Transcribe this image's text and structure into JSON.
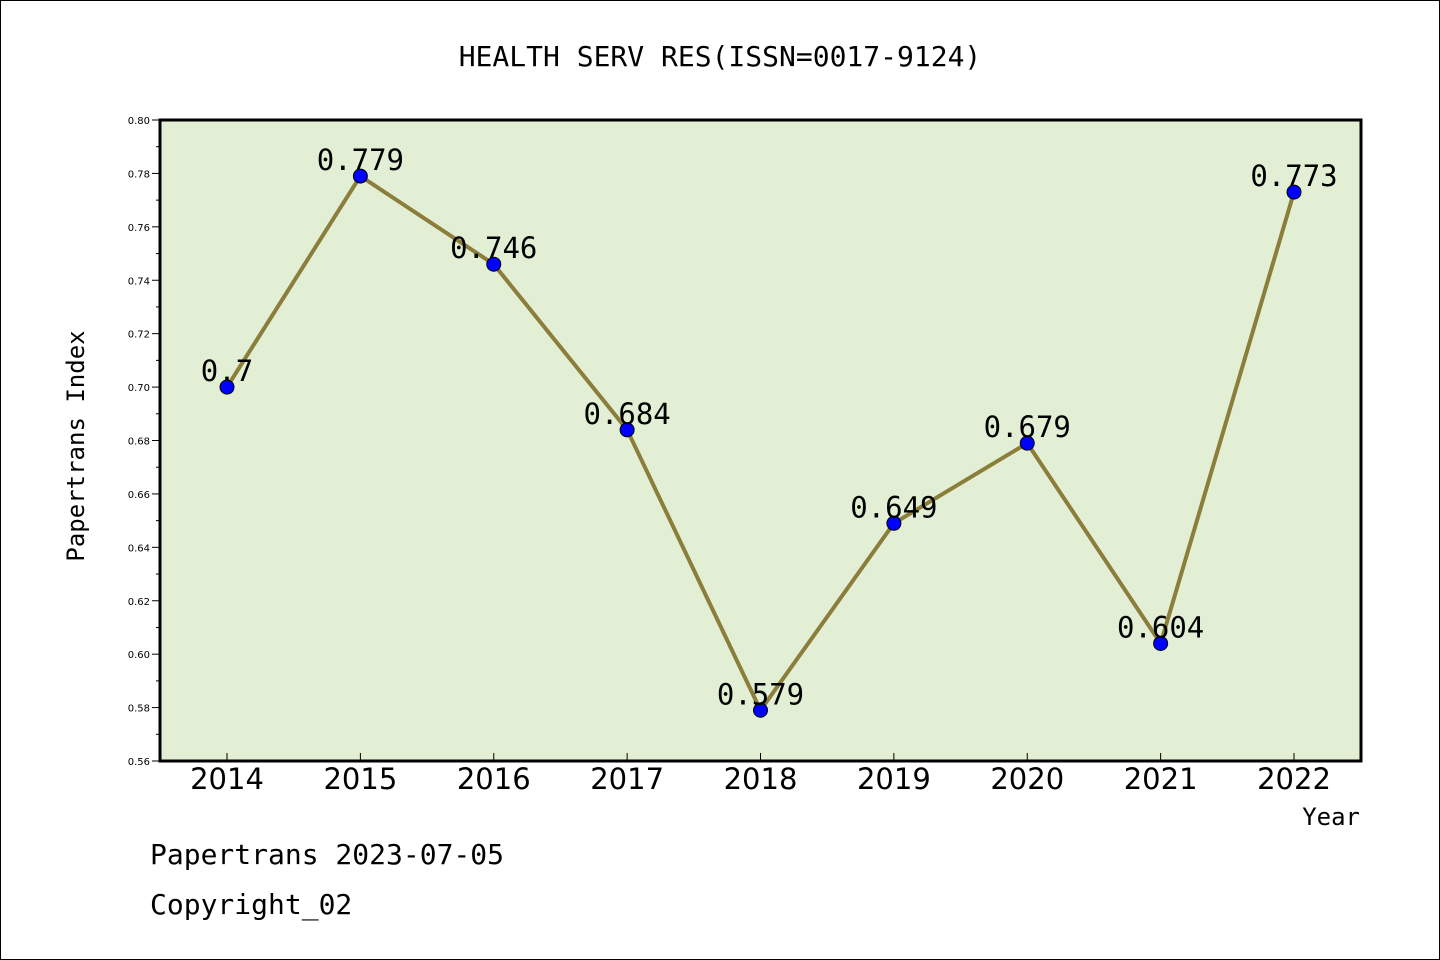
{
  "chart_data": {
    "type": "line",
    "title": "HEALTH SERV RES(ISSN=0017-9124)",
    "xlabel": "Year",
    "ylabel": "Papertrans Index",
    "categories": [
      "2014",
      "2015",
      "2016",
      "2017",
      "2018",
      "2019",
      "2020",
      "2021",
      "2022"
    ],
    "values": [
      0.7,
      0.779,
      0.746,
      0.684,
      0.579,
      0.649,
      0.679,
      0.604,
      0.773
    ],
    "data_labels": [
      "0.7",
      "0.779",
      "0.746",
      "0.684",
      "0.579",
      "0.649",
      "0.679",
      "0.604",
      "0.773"
    ],
    "ylim": [
      0.56,
      0.8
    ],
    "yticks": [
      "0.56",
      "0.58",
      "0.60",
      "0.62",
      "0.64",
      "0.66",
      "0.68",
      "0.70",
      "0.72",
      "0.74",
      "0.76",
      "0.78",
      "0.80"
    ],
    "grid": false,
    "legend": "none",
    "colors": {
      "plot_background": "#e2efd5",
      "line": "#8b7d3a",
      "marker": "#0000ff",
      "axis": "#000000"
    }
  },
  "footer": {
    "line1": "Papertrans 2023-07-05",
    "line2": "Copyright_02"
  }
}
